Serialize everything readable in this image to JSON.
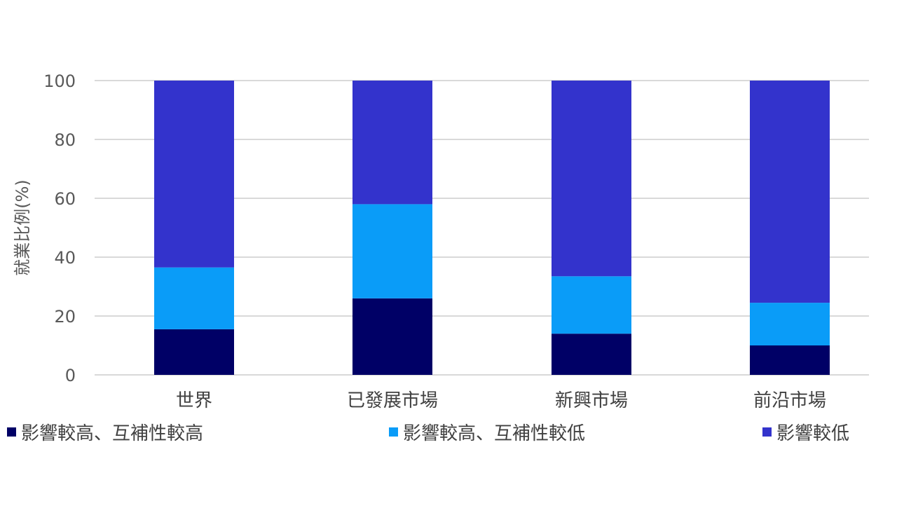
{
  "chart_data": {
    "type": "bar",
    "stacked": true,
    "ylabel": "就業比例(%)",
    "xlabel": "",
    "ylim": [
      0,
      100
    ],
    "yticks": [
      0,
      20,
      40,
      60,
      80,
      100
    ],
    "grid": true,
    "legend_position": "bottom",
    "categories": [
      "世界",
      "已發展市場",
      "新興市場",
      "前沿市場"
    ],
    "series": [
      {
        "name": "影響較高、互補性較高",
        "color": "#000066",
        "values": [
          15.5,
          26,
          14,
          10
        ]
      },
      {
        "name": "影響較高、互補性較低",
        "color": "#0a9cf8",
        "values": [
          21,
          32,
          19.5,
          14.5
        ]
      },
      {
        "name": "影響較低",
        "color": "#3333cc",
        "values": [
          63.5,
          42,
          66.5,
          75.5
        ]
      }
    ]
  }
}
